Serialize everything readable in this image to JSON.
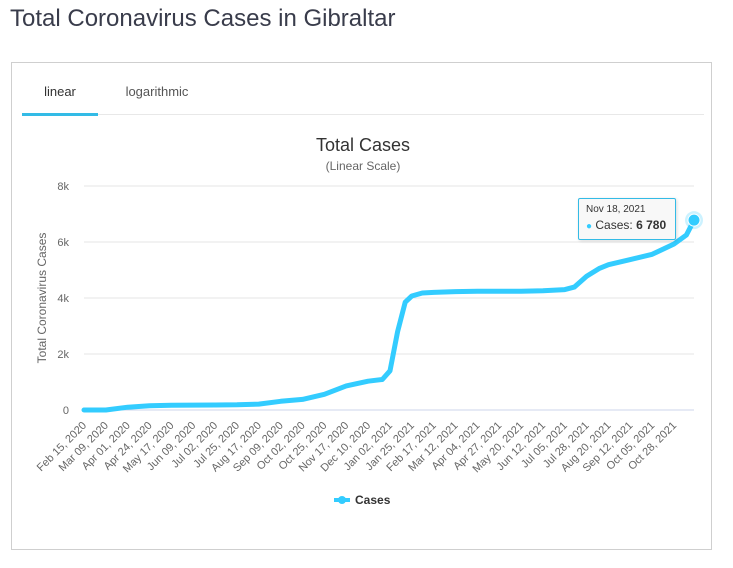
{
  "page": {
    "title": "Total Coronavirus Cases in Gibraltar"
  },
  "tabs": [
    {
      "label": "linear",
      "active": true
    },
    {
      "label": "logarithmic",
      "active": false
    }
  ],
  "chart_data": {
    "type": "line",
    "title": "Total Cases",
    "subtitle": "(Linear Scale)",
    "ylabel": "Total Coronavirus Cases",
    "xlabel": "",
    "ylim": [
      0,
      8000
    ],
    "y_ticks": [
      0,
      2000,
      4000,
      6000,
      8000
    ],
    "y_tick_labels": [
      "0",
      "2k",
      "4k",
      "6k",
      "8k"
    ],
    "x_tick_labels": [
      "Feb 15, 2020",
      "Mar 09, 2020",
      "Apr 01, 2020",
      "Apr 24, 2020",
      "May 17, 2020",
      "Jun 09, 2020",
      "Jul 02, 2020",
      "Jul 25, 2020",
      "Aug 17, 2020",
      "Sep 09, 2020",
      "Oct 02, 2020",
      "Oct 25, 2020",
      "Nov 17, 2020",
      "Dec 10, 2020",
      "Jan 02, 2021",
      "Jan 25, 2021",
      "Feb 17, 2021",
      "Mar 12, 2021",
      "Apr 04, 2021",
      "Apr 27, 2021",
      "May 20, 2021",
      "Jun 12, 2021",
      "Jul 05, 2021",
      "Jul 28, 2021",
      "Aug 20, 2021",
      "Sep 12, 2021",
      "Oct 05, 2021",
      "Oct 28, 2021"
    ],
    "grid": true,
    "legend": "bottom",
    "color": "#33ccff",
    "series": [
      {
        "name": "Cases",
        "x": [
          "Feb 15, 2020",
          "Mar 09, 2020",
          "Apr 01, 2020",
          "Apr 24, 2020",
          "May 17, 2020",
          "Jun 09, 2020",
          "Jul 02, 2020",
          "Jul 25, 2020",
          "Aug 17, 2020",
          "Sep 09, 2020",
          "Oct 02, 2020",
          "Oct 25, 2020",
          "Nov 17, 2020",
          "Dec 10, 2020",
          "Dec 25, 2020",
          "Jan 02, 2021",
          "Jan 10, 2021",
          "Jan 18, 2021",
          "Jan 25, 2021",
          "Feb 05, 2021",
          "Feb 17, 2021",
          "Mar 12, 2021",
          "Apr 04, 2021",
          "Apr 27, 2021",
          "May 20, 2021",
          "Jun 12, 2021",
          "Jul 05, 2021",
          "Jul 15, 2021",
          "Jul 28, 2021",
          "Aug 10, 2021",
          "Aug 20, 2021",
          "Sep 12, 2021",
          "Oct 05, 2021",
          "Oct 28, 2021",
          "Nov 10, 2021",
          "Nov 18, 2021"
        ],
        "values": [
          0,
          0,
          100,
          150,
          170,
          175,
          180,
          185,
          210,
          310,
          380,
          560,
          860,
          1030,
          1090,
          1400,
          2800,
          3850,
          4070,
          4180,
          4200,
          4230,
          4240,
          4240,
          4240,
          4260,
          4300,
          4390,
          4780,
          5050,
          5190,
          5370,
          5560,
          5930,
          6250,
          6780
        ]
      }
    ]
  },
  "tooltip": {
    "date": "Nov 18, 2021",
    "series_label": "Cases:",
    "value": "6 780"
  },
  "legend": {
    "label": "Cases"
  }
}
